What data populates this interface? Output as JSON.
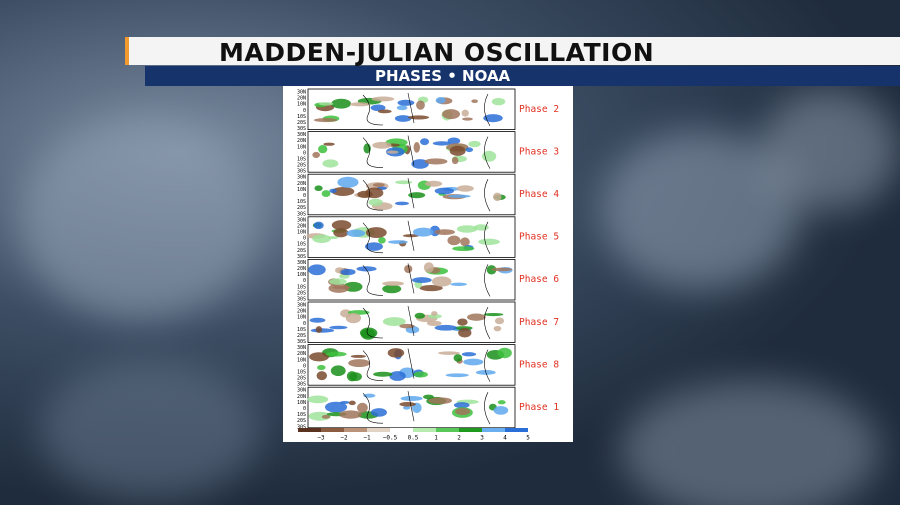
{
  "header": {
    "title": "MADDEN-JULIAN OSCILLATION",
    "subtitle": "PHASES • NOAA"
  },
  "figure": {
    "lat_labels": [
      "30N",
      "20N",
      "10N",
      "0",
      "10S",
      "20S",
      "30S"
    ],
    "panels": [
      {
        "label": "Phase 2"
      },
      {
        "label": "Phase 3"
      },
      {
        "label": "Phase 4"
      },
      {
        "label": "Phase 5"
      },
      {
        "label": "Phase 6"
      },
      {
        "label": "Phase 7"
      },
      {
        "label": "Phase 8"
      },
      {
        "label": "Phase 1"
      }
    ],
    "colorbar": {
      "labels": [
        "−3",
        "−2",
        "−1",
        "−0.5",
        "0.5",
        "1",
        "2",
        "3",
        "4",
        "5"
      ]
    }
  }
}
